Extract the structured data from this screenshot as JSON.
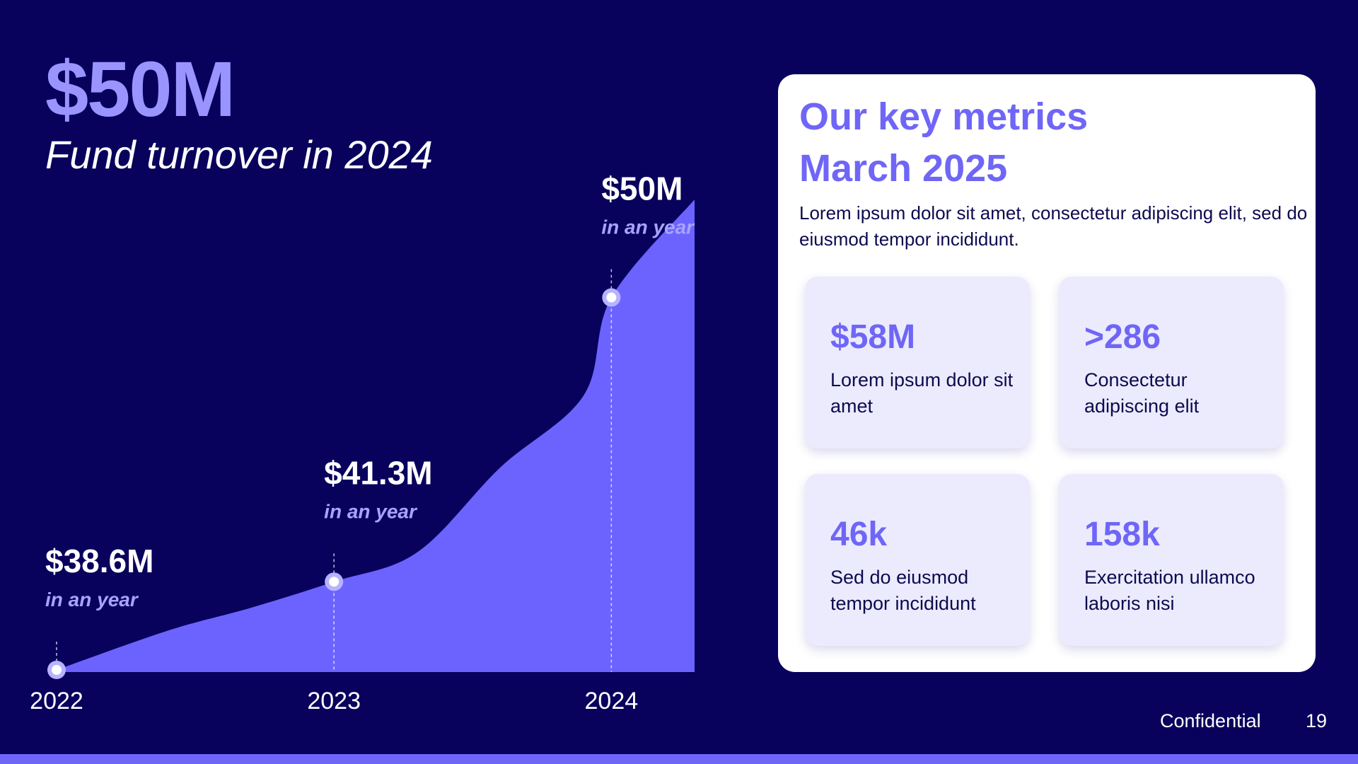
{
  "headline": {
    "value": "$50M",
    "subtitle": "Fund turnover in 2024"
  },
  "chart_data": {
    "type": "area",
    "x_ticks": [
      "2022",
      "2023",
      "2024"
    ],
    "points": [
      {
        "x": 2022.0,
        "y": 38.6
      },
      {
        "x": 2022.4,
        "y": 39.8
      },
      {
        "x": 2022.7,
        "y": 40.5
      },
      {
        "x": 2023.0,
        "y": 41.3
      },
      {
        "x": 2023.3,
        "y": 42.2
      },
      {
        "x": 2023.6,
        "y": 44.8
      },
      {
        "x": 2023.9,
        "y": 47.0
      },
      {
        "x": 2024.0,
        "y": 50.0
      },
      {
        "x": 2024.3,
        "y": 53.0
      }
    ],
    "ylim": [
      38.6,
      53.0
    ],
    "xlim": [
      2022.0,
      2024.3
    ],
    "grid": false,
    "markers": [
      {
        "x": 2022,
        "y": 38.6,
        "label": "$38.6M",
        "sublabel": "in an year"
      },
      {
        "x": 2023,
        "y": 41.3,
        "label": "$41.3M",
        "sublabel": "in an year"
      },
      {
        "x": 2024,
        "y": 50.0,
        "label": "$50M",
        "sublabel": "in an year"
      }
    ],
    "colors": {
      "area": "#6c63ff",
      "marker_fill": "#ffffff",
      "marker_ring": "#b7b3ff"
    }
  },
  "metrics_card": {
    "title_line1": "Our key metrics",
    "title_line2": "March 2025",
    "description": "Lorem ipsum dolor sit amet, consectetur adipiscing elit, sed do eiusmod tempor incididunt.",
    "tiles": [
      {
        "value": "$58M",
        "description": "Lorem ipsum dolor sit amet"
      },
      {
        "value": ">286",
        "description": "Consectetur adipiscing elit"
      },
      {
        "value": "46k",
        "description": "Sed do eiusmod tempor incididunt"
      },
      {
        "value": "158k",
        "description": "Exercitation ullamco laboris nisi"
      }
    ]
  },
  "footer": {
    "label": "Confidential",
    "page": "19"
  },
  "colors": {
    "background": "#08025c",
    "accent": "#6f66f7",
    "headline": "#9a94ff",
    "card": "#ffffff",
    "tile": "#ebebfd"
  }
}
